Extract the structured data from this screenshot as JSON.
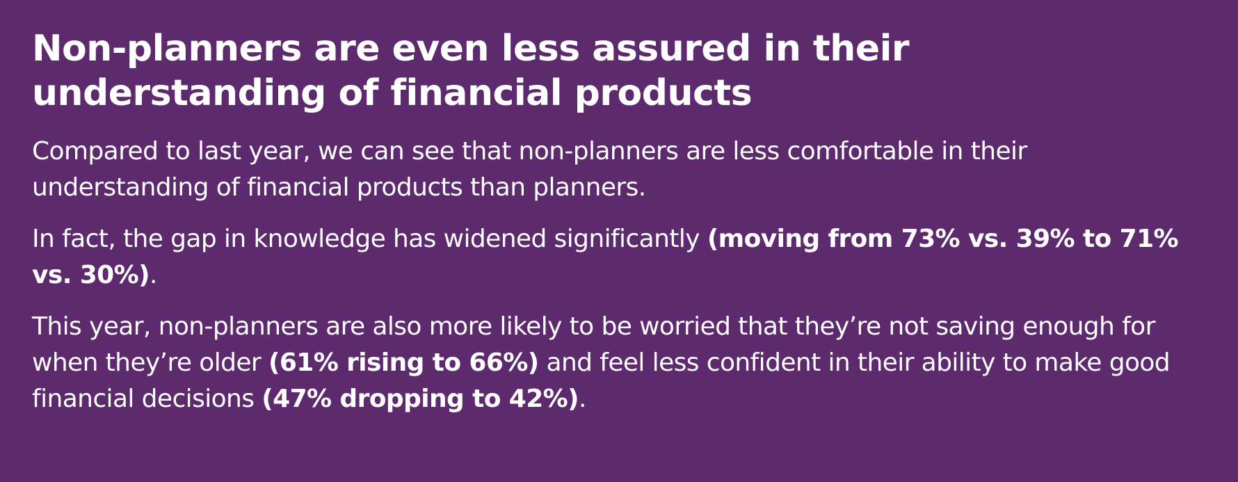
{
  "colors": {
    "background": "#5c2a6d",
    "text": "#ffffff"
  },
  "title": "Non-planners are even less assured in their understanding of financial products",
  "paragraphs": [
    {
      "text": "Compared to last year, we can see that non-planners are less comfortable in their understanding of financial products than planners."
    },
    {
      "text_before": "In fact, the gap in knowledge has widened significantly ",
      "bold": "(moving from 73% vs. 39% to 71% vs. 30%)",
      "text_after": "."
    },
    {
      "text_before": "This year, non-planners are also more likely to be worried that they’re not saving enough for when they’re older ",
      "bold_1": "(61% rising to 66%)",
      "text_middle": " and feel less confident in their ability to make good financial decisions ",
      "bold_2": "(47% dropping to 42%)",
      "text_after": "."
    }
  ]
}
